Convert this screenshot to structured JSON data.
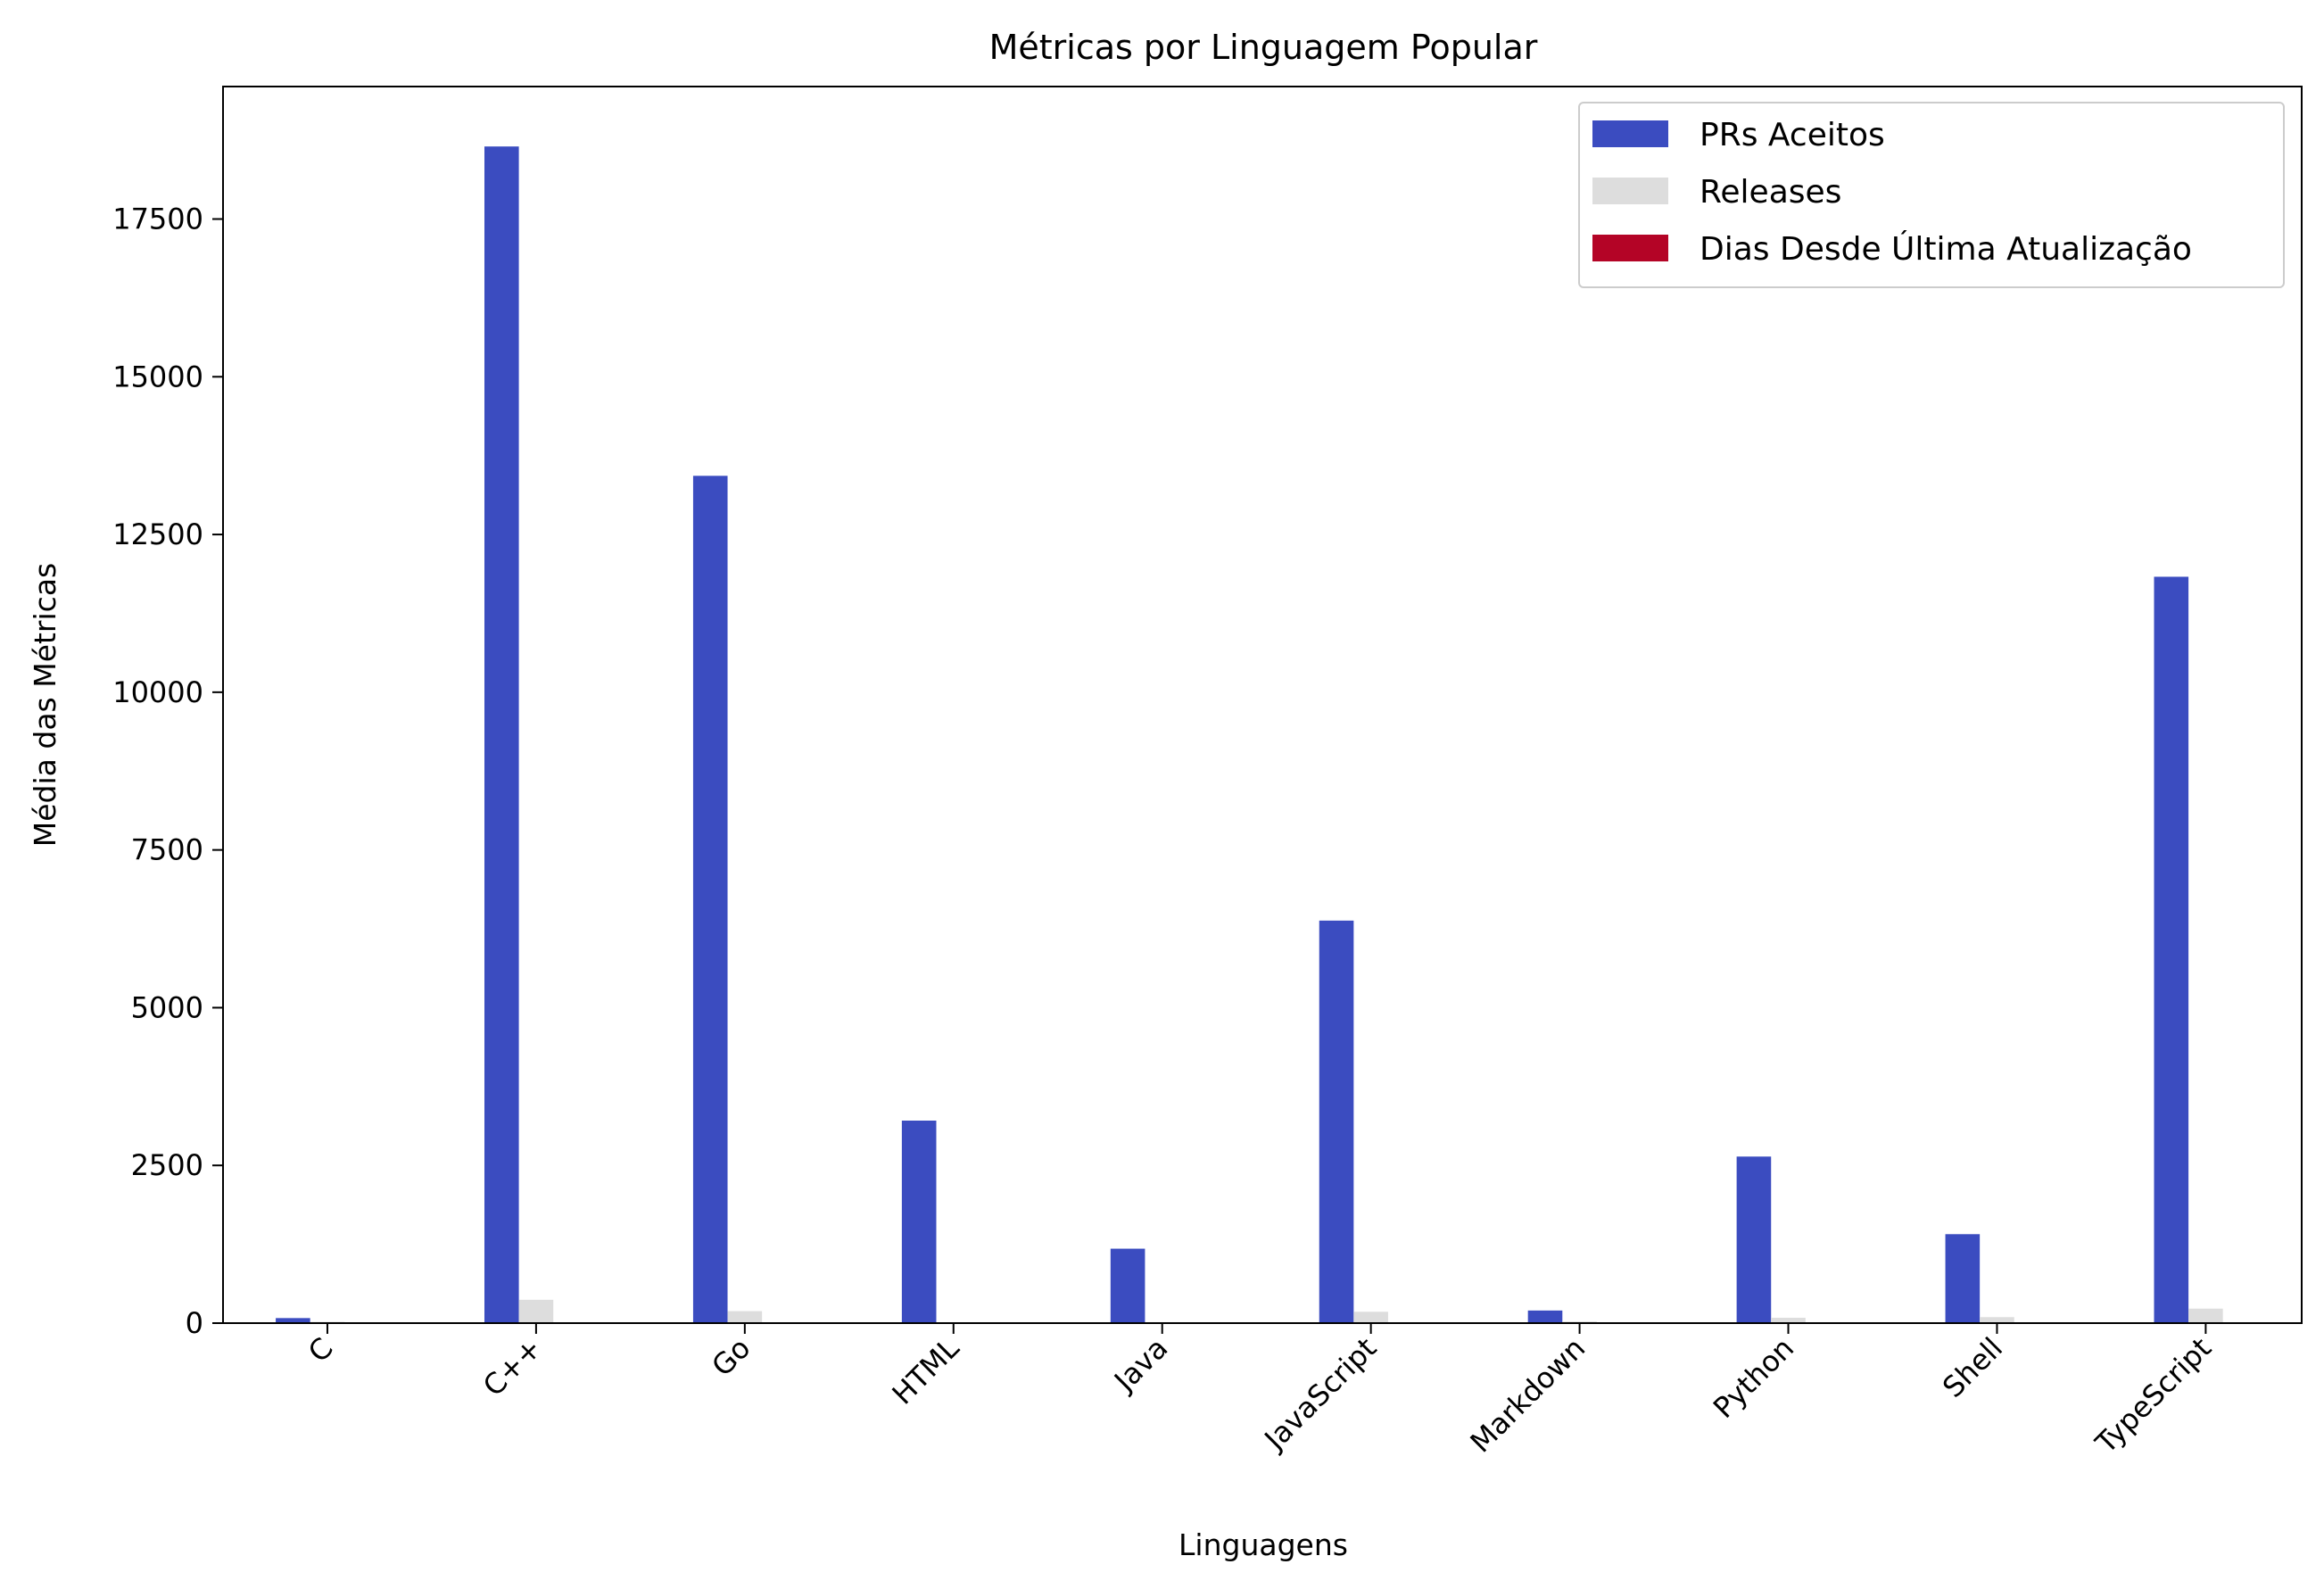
{
  "chart_data": {
    "type": "bar",
    "title": "Métricas por Linguagem Popular",
    "xlabel": "Linguagens",
    "ylabel": "Média das Métricas",
    "categories": [
      "C",
      "C++",
      "Go",
      "HTML",
      "Java",
      "JavaScript",
      "Markdown",
      "Python",
      "Shell",
      "TypeScript"
    ],
    "series": [
      {
        "name": "PRs Aceitos",
        "color": "#3b4cc0",
        "values": [
          80,
          18650,
          13430,
          3210,
          1180,
          6380,
          200,
          2640,
          1410,
          11830
        ]
      },
      {
        "name": "Releases",
        "color": "#dddddd",
        "values": [
          20,
          370,
          190,
          10,
          15,
          180,
          25,
          85,
          95,
          230
        ]
      },
      {
        "name": "Dias Desde Última Atualização",
        "color": "#b40426",
        "values": [
          1,
          1,
          1,
          1,
          1,
          1,
          1,
          1,
          1,
          1
        ]
      }
    ],
    "ylim": [
      0,
      19600
    ],
    "yticks": [
      0,
      2500,
      5000,
      7500,
      10000,
      12500,
      15000,
      17500
    ],
    "legend_position": "top-right",
    "grid": false
  }
}
